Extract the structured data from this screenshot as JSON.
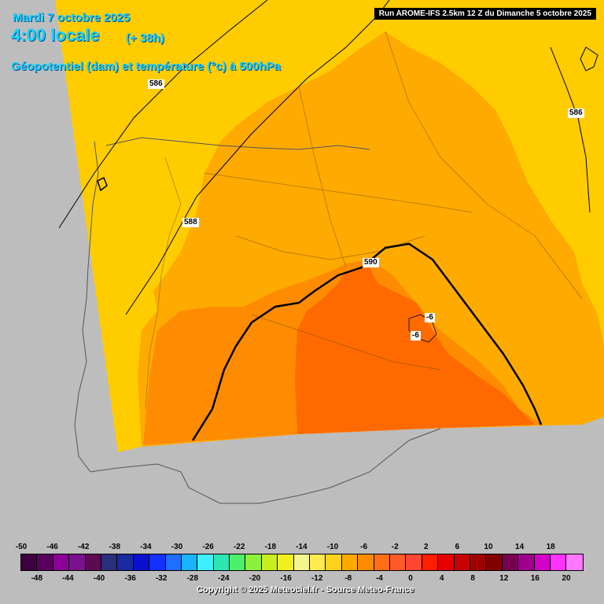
{
  "header": {
    "date": "Mardi 7 octobre 2025",
    "time": "4:00 locale",
    "lead": "(+ 38h)",
    "parameter": "Géopotentiel (dam) et température (°c) à 500hPa"
  },
  "run_info": "Run AROME-IFS 2.5km 12 Z du Dimanche 5 octobre 2025",
  "contours": {
    "geopotential": [
      "586",
      "586",
      "588",
      "590"
    ],
    "temperature": [
      "-6",
      "-6"
    ]
  },
  "legend": {
    "top_labels": [
      "-50",
      "-46",
      "-42",
      "-38",
      "-34",
      "-30",
      "-26",
      "-22",
      "-18",
      "-14",
      "-10",
      "-6",
      "-2",
      "2",
      "6",
      "10",
      "14",
      "18"
    ],
    "bottom_labels": [
      "-48",
      "-44",
      "-40",
      "-36",
      "-32",
      "-28",
      "-24",
      "-20",
      "-16",
      "-12",
      "-8",
      "-4",
      "0",
      "4",
      "8",
      "12",
      "16",
      "20"
    ],
    "colors": [
      "#3d0040",
      "#5a005e",
      "#8b0096",
      "#7c1190",
      "#5c0a52",
      "#2a2f7a",
      "#1a2aa0",
      "#0a10d0",
      "#1432ff",
      "#1e6eff",
      "#18b4ff",
      "#3cf0ff",
      "#2ee6b4",
      "#4cf06a",
      "#8ef03c",
      "#c8f020",
      "#f0f020",
      "#f5f58c",
      "#ffeb50",
      "#ffd21e",
      "#ffaa00",
      "#ff8c00",
      "#ff6e14",
      "#ff5a28",
      "#ff4632",
      "#ff1e00",
      "#e60000",
      "#c80000",
      "#a00000",
      "#820000",
      "#780050",
      "#a0008c",
      "#d200c8",
      "#ff32ff",
      "#ff78ff"
    ]
  },
  "copyright": "Copyright © 2025 Meteociel.fr - Source Meteo-France"
}
